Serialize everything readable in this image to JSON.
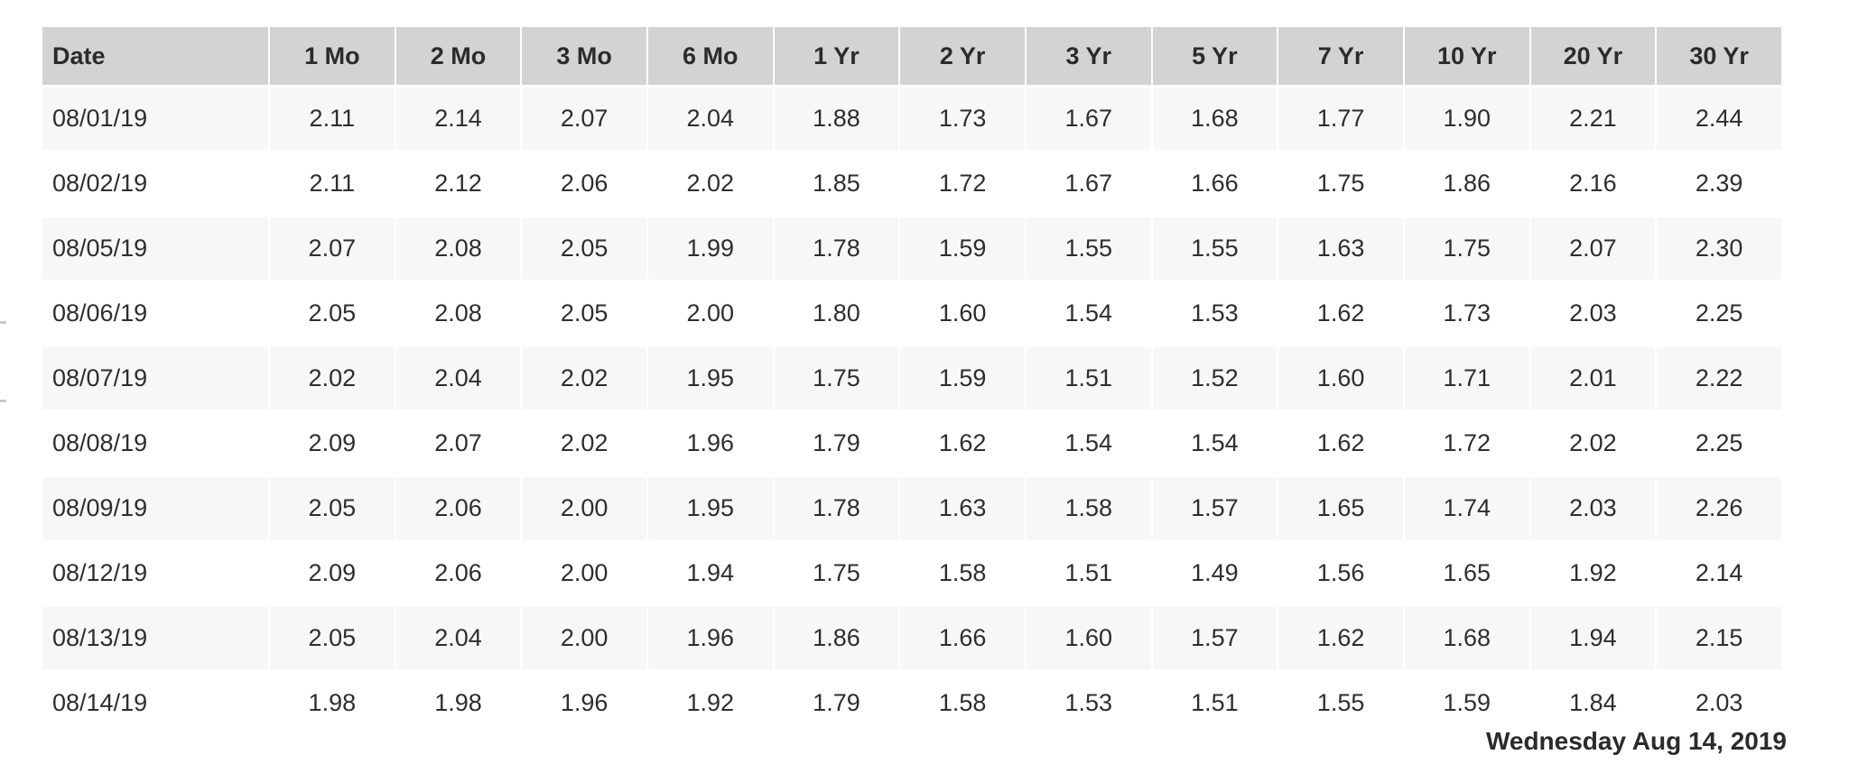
{
  "chart_data": {
    "type": "table",
    "columns": [
      "Date",
      "1 Mo",
      "2 Mo",
      "3 Mo",
      "6 Mo",
      "1 Yr",
      "2 Yr",
      "3 Yr",
      "5 Yr",
      "7 Yr",
      "10 Yr",
      "20 Yr",
      "30 Yr"
    ],
    "rows": [
      [
        "08/01/19",
        "2.11",
        "2.14",
        "2.07",
        "2.04",
        "1.88",
        "1.73",
        "1.67",
        "1.68",
        "1.77",
        "1.90",
        "2.21",
        "2.44"
      ],
      [
        "08/02/19",
        "2.11",
        "2.12",
        "2.06",
        "2.02",
        "1.85",
        "1.72",
        "1.67",
        "1.66",
        "1.75",
        "1.86",
        "2.16",
        "2.39"
      ],
      [
        "08/05/19",
        "2.07",
        "2.08",
        "2.05",
        "1.99",
        "1.78",
        "1.59",
        "1.55",
        "1.55",
        "1.63",
        "1.75",
        "2.07",
        "2.30"
      ],
      [
        "08/06/19",
        "2.05",
        "2.08",
        "2.05",
        "2.00",
        "1.80",
        "1.60",
        "1.54",
        "1.53",
        "1.62",
        "1.73",
        "2.03",
        "2.25"
      ],
      [
        "08/07/19",
        "2.02",
        "2.04",
        "2.02",
        "1.95",
        "1.75",
        "1.59",
        "1.51",
        "1.52",
        "1.60",
        "1.71",
        "2.01",
        "2.22"
      ],
      [
        "08/08/19",
        "2.09",
        "2.07",
        "2.02",
        "1.96",
        "1.79",
        "1.62",
        "1.54",
        "1.54",
        "1.62",
        "1.72",
        "2.02",
        "2.25"
      ],
      [
        "08/09/19",
        "2.05",
        "2.06",
        "2.00",
        "1.95",
        "1.78",
        "1.63",
        "1.58",
        "1.57",
        "1.65",
        "1.74",
        "2.03",
        "2.26"
      ],
      [
        "08/12/19",
        "2.09",
        "2.06",
        "2.00",
        "1.94",
        "1.75",
        "1.58",
        "1.51",
        "1.49",
        "1.56",
        "1.65",
        "1.92",
        "2.14"
      ],
      [
        "08/13/19",
        "2.05",
        "2.04",
        "2.00",
        "1.96",
        "1.86",
        "1.66",
        "1.60",
        "1.57",
        "1.62",
        "1.68",
        "1.94",
        "2.15"
      ],
      [
        "08/14/19",
        "1.98",
        "1.98",
        "1.96",
        "1.92",
        "1.79",
        "1.58",
        "1.53",
        "1.51",
        "1.55",
        "1.59",
        "1.84",
        "2.03"
      ]
    ],
    "legend_position": "none",
    "grid": false
  },
  "footer": {
    "date_label": "Wednesday Aug 14, 2019"
  },
  "colors": {
    "header_bg": "#d3d3d3",
    "row_stripe_bg": "#f7f7f7",
    "row_plain_bg": "#ffffff",
    "text": "#2e2e2e"
  }
}
